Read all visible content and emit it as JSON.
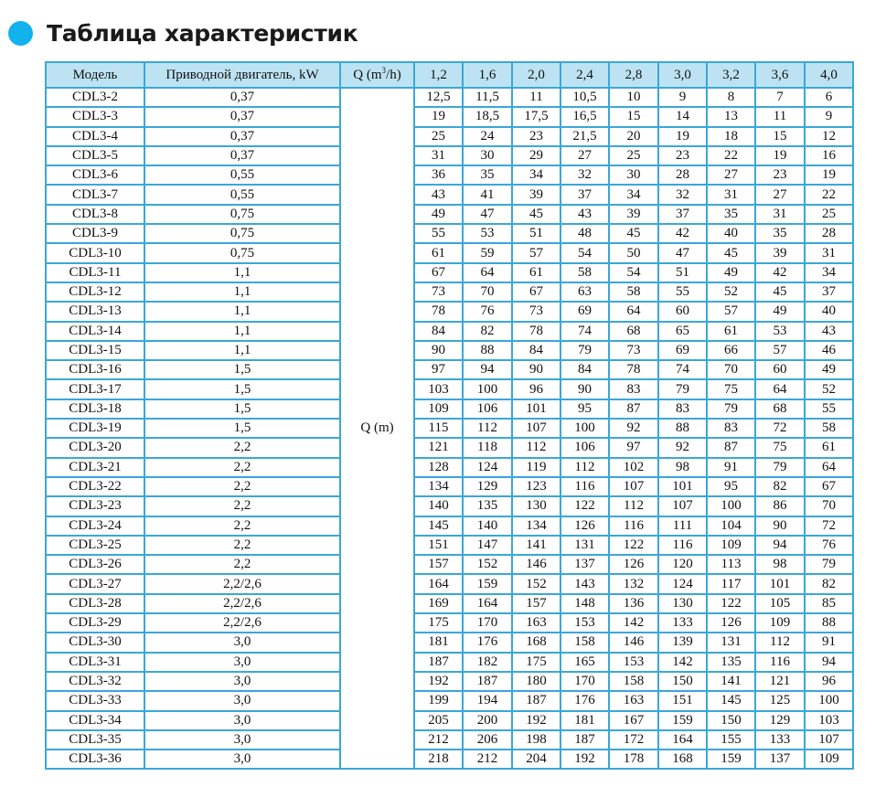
{
  "title": "Таблица характеристик",
  "colors": {
    "accent": "#12b2ec",
    "border": "#3aa7d9",
    "header_bg": "#bde3f3"
  },
  "table": {
    "headers": {
      "model": "Модель",
      "motor": "Приводной двигатель, kW",
      "q_prefix": "Q (m",
      "q_sup": "3",
      "q_suffix": "/h)"
    },
    "flow_values": [
      "1,2",
      "1,6",
      "2,0",
      "2,4",
      "2,8",
      "3,0",
      "3,2",
      "3,6",
      "4,0"
    ],
    "head_label": "Q (m)",
    "rows": [
      {
        "model": "CDL3-2",
        "motor": "0,37",
        "values": [
          "12,5",
          "11,5",
          "11",
          "10,5",
          "10",
          "9",
          "8",
          "7",
          "6"
        ]
      },
      {
        "model": "CDL3-3",
        "motor": "0,37",
        "values": [
          "19",
          "18,5",
          "17,5",
          "16,5",
          "15",
          "14",
          "13",
          "11",
          "9"
        ]
      },
      {
        "model": "CDL3-4",
        "motor": "0,37",
        "values": [
          "25",
          "24",
          "23",
          "21,5",
          "20",
          "19",
          "18",
          "15",
          "12"
        ]
      },
      {
        "model": "CDL3-5",
        "motor": "0,37",
        "values": [
          "31",
          "30",
          "29",
          "27",
          "25",
          "23",
          "22",
          "19",
          "16"
        ]
      },
      {
        "model": "CDL3-6",
        "motor": "0,55",
        "values": [
          "36",
          "35",
          "34",
          "32",
          "30",
          "28",
          "27",
          "23",
          "19"
        ]
      },
      {
        "model": "CDL3-7",
        "motor": "0,55",
        "values": [
          "43",
          "41",
          "39",
          "37",
          "34",
          "32",
          "31",
          "27",
          "22"
        ]
      },
      {
        "model": "CDL3-8",
        "motor": "0,75",
        "values": [
          "49",
          "47",
          "45",
          "43",
          "39",
          "37",
          "35",
          "31",
          "25"
        ]
      },
      {
        "model": "CDL3-9",
        "motor": "0,75",
        "values": [
          "55",
          "53",
          "51",
          "48",
          "45",
          "42",
          "40",
          "35",
          "28"
        ]
      },
      {
        "model": "CDL3-10",
        "motor": "0,75",
        "values": [
          "61",
          "59",
          "57",
          "54",
          "50",
          "47",
          "45",
          "39",
          "31"
        ]
      },
      {
        "model": "CDL3-11",
        "motor": "1,1",
        "values": [
          "67",
          "64",
          "61",
          "58",
          "54",
          "51",
          "49",
          "42",
          "34"
        ]
      },
      {
        "model": "CDL3-12",
        "motor": "1,1",
        "values": [
          "73",
          "70",
          "67",
          "63",
          "58",
          "55",
          "52",
          "45",
          "37"
        ]
      },
      {
        "model": "CDL3-13",
        "motor": "1,1",
        "values": [
          "78",
          "76",
          "73",
          "69",
          "64",
          "60",
          "57",
          "49",
          "40"
        ]
      },
      {
        "model": "CDL3-14",
        "motor": "1,1",
        "values": [
          "84",
          "82",
          "78",
          "74",
          "68",
          "65",
          "61",
          "53",
          "43"
        ]
      },
      {
        "model": "CDL3-15",
        "motor": "1,1",
        "values": [
          "90",
          "88",
          "84",
          "79",
          "73",
          "69",
          "66",
          "57",
          "46"
        ]
      },
      {
        "model": "CDL3-16",
        "motor": "1,5",
        "values": [
          "97",
          "94",
          "90",
          "84",
          "78",
          "74",
          "70",
          "60",
          "49"
        ]
      },
      {
        "model": "CDL3-17",
        "motor": "1,5",
        "values": [
          "103",
          "100",
          "96",
          "90",
          "83",
          "79",
          "75",
          "64",
          "52"
        ]
      },
      {
        "model": "CDL3-18",
        "motor": "1,5",
        "values": [
          "109",
          "106",
          "101",
          "95",
          "87",
          "83",
          "79",
          "68",
          "55"
        ]
      },
      {
        "model": "CDL3-19",
        "motor": "1,5",
        "values": [
          "115",
          "112",
          "107",
          "100",
          "92",
          "88",
          "83",
          "72",
          "58"
        ]
      },
      {
        "model": "CDL3-20",
        "motor": "2,2",
        "values": [
          "121",
          "118",
          "112",
          "106",
          "97",
          "92",
          "87",
          "75",
          "61"
        ]
      },
      {
        "model": "CDL3-21",
        "motor": "2,2",
        "values": [
          "128",
          "124",
          "119",
          "112",
          "102",
          "98",
          "91",
          "79",
          "64"
        ]
      },
      {
        "model": "CDL3-22",
        "motor": "2,2",
        "values": [
          "134",
          "129",
          "123",
          "116",
          "107",
          "101",
          "95",
          "82",
          "67"
        ]
      },
      {
        "model": "CDL3-23",
        "motor": "2,2",
        "values": [
          "140",
          "135",
          "130",
          "122",
          "112",
          "107",
          "100",
          "86",
          "70"
        ]
      },
      {
        "model": "CDL3-24",
        "motor": "2,2",
        "values": [
          "145",
          "140",
          "134",
          "126",
          "116",
          "111",
          "104",
          "90",
          "72"
        ]
      },
      {
        "model": "CDL3-25",
        "motor": "2,2",
        "values": [
          "151",
          "147",
          "141",
          "131",
          "122",
          "116",
          "109",
          "94",
          "76"
        ]
      },
      {
        "model": "CDL3-26",
        "motor": "2,2",
        "values": [
          "157",
          "152",
          "146",
          "137",
          "126",
          "120",
          "113",
          "98",
          "79"
        ]
      },
      {
        "model": "CDL3-27",
        "motor": "2,2/2,6",
        "values": [
          "164",
          "159",
          "152",
          "143",
          "132",
          "124",
          "117",
          "101",
          "82"
        ]
      },
      {
        "model": "CDL3-28",
        "motor": "2,2/2,6",
        "values": [
          "169",
          "164",
          "157",
          "148",
          "136",
          "130",
          "122",
          "105",
          "85"
        ]
      },
      {
        "model": "CDL3-29",
        "motor": "2,2/2,6",
        "values": [
          "175",
          "170",
          "163",
          "153",
          "142",
          "133",
          "126",
          "109",
          "88"
        ]
      },
      {
        "model": "CDL3-30",
        "motor": "3,0",
        "values": [
          "181",
          "176",
          "168",
          "158",
          "146",
          "139",
          "131",
          "112",
          "91"
        ]
      },
      {
        "model": "CDL3-31",
        "motor": "3,0",
        "values": [
          "187",
          "182",
          "175",
          "165",
          "153",
          "142",
          "135",
          "116",
          "94"
        ]
      },
      {
        "model": "CDL3-32",
        "motor": "3,0",
        "values": [
          "192",
          "187",
          "180",
          "170",
          "158",
          "150",
          "141",
          "121",
          "96"
        ]
      },
      {
        "model": "CDL3-33",
        "motor": "3,0",
        "values": [
          "199",
          "194",
          "187",
          "176",
          "163",
          "151",
          "145",
          "125",
          "100"
        ]
      },
      {
        "model": "CDL3-34",
        "motor": "3,0",
        "values": [
          "205",
          "200",
          "192",
          "181",
          "167",
          "159",
          "150",
          "129",
          "103"
        ]
      },
      {
        "model": "CDL3-35",
        "motor": "3,0",
        "values": [
          "212",
          "206",
          "198",
          "187",
          "172",
          "164",
          "155",
          "133",
          "107"
        ]
      },
      {
        "model": "CDL3-36",
        "motor": "3,0",
        "values": [
          "218",
          "212",
          "204",
          "192",
          "178",
          "168",
          "159",
          "137",
          "109"
        ]
      }
    ]
  }
}
